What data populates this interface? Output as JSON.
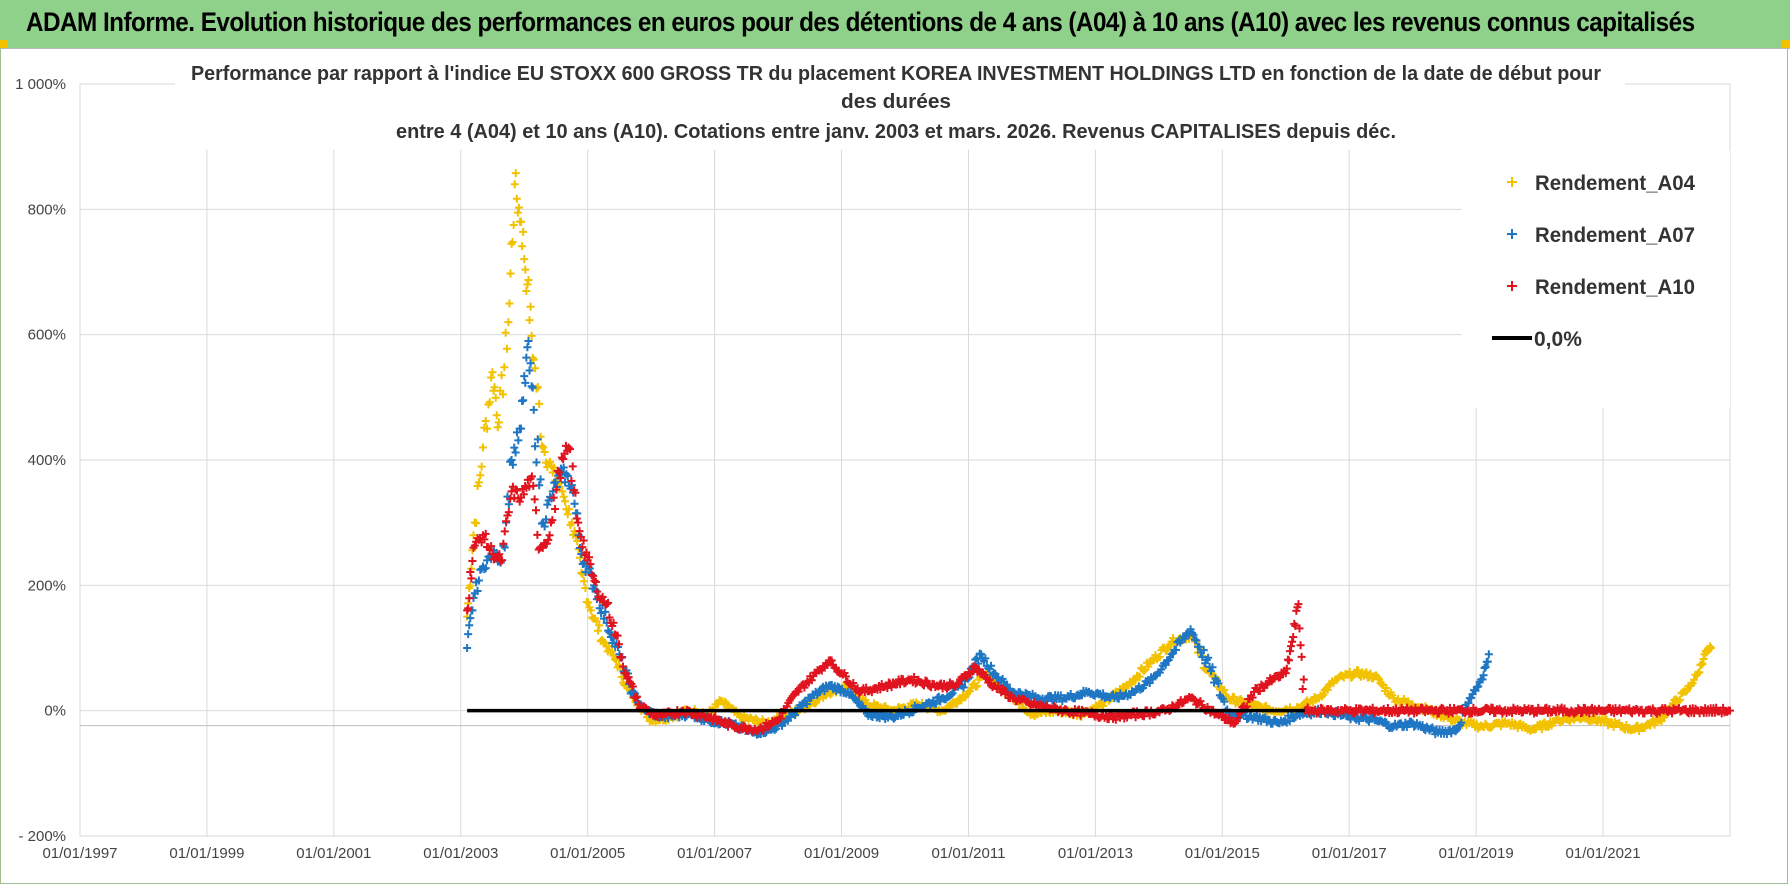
{
  "header": {
    "banner_title": "ADAM Informe. Evolution historique des performances en euros pour des détentions de 4 ans (A04) à 10 ans (A10) avec les revenus connus capitalisés"
  },
  "chart_data": {
    "type": "scatter",
    "title_lines": [
      "Performance par rapport à l'indice EU STOXX 600 GROSS TR  du placement KOREA INVESTMENT HOLDINGS LTD en fonction de la date de début pour",
      "des durées",
      "entre 4 (A04) et 10 ans (A10). Cotations entre janv. 2003 et mars. 2026. Revenus CAPITALISES depuis déc."
    ],
    "x_axis": {
      "range_years": [
        1997.0,
        2023.0
      ],
      "tick_labels": [
        "01/01/1997",
        "01/01/1999",
        "01/01/2001",
        "01/01/2003",
        "01/01/2005",
        "01/01/2007",
        "01/01/2009",
        "01/01/2011",
        "01/01/2013",
        "01/01/2015",
        "01/01/2017",
        "01/01/2019",
        "01/01/2021"
      ],
      "tick_years": [
        1997,
        1999,
        2001,
        2003,
        2005,
        2007,
        2009,
        2011,
        2013,
        2015,
        2017,
        2019,
        2021
      ]
    },
    "y_axis": {
      "range_pct": [
        -200,
        1000
      ],
      "tick_values": [
        -200,
        0,
        200,
        400,
        600,
        800,
        1000
      ],
      "tick_labels": [
        "- 200%",
        "0%",
        "200%",
        "400%",
        "600%",
        "800%",
        "1 000%"
      ]
    },
    "grid": true,
    "legend_position": "top-right",
    "series": [
      {
        "name": "Rendement_A04",
        "color": "#f2c200",
        "marker": "plus",
        "points": [
          [
            2003.1,
            150
          ],
          [
            2003.2,
            280
          ],
          [
            2003.35,
            420
          ],
          [
            2003.5,
            540
          ],
          [
            2003.6,
            460
          ],
          [
            2003.75,
            620
          ],
          [
            2003.85,
            840
          ],
          [
            2003.95,
            780
          ],
          [
            2004.05,
            680
          ],
          [
            2004.15,
            560
          ],
          [
            2004.3,
            420
          ],
          [
            2004.45,
            380
          ],
          [
            2004.6,
            350
          ],
          [
            2004.75,
            300
          ],
          [
            2004.9,
            220
          ],
          [
            2005.05,
            160
          ],
          [
            2005.25,
            110
          ],
          [
            2005.45,
            80
          ],
          [
            2005.6,
            40
          ],
          [
            2005.8,
            10
          ],
          [
            2006.0,
            -15
          ],
          [
            2006.3,
            -10
          ],
          [
            2006.6,
            0
          ],
          [
            2006.9,
            -5
          ],
          [
            2007.1,
            15
          ],
          [
            2007.4,
            -10
          ],
          [
            2007.8,
            -20
          ],
          [
            2008.1,
            -10
          ],
          [
            2008.4,
            5
          ],
          [
            2008.8,
            30
          ],
          [
            2009.1,
            40
          ],
          [
            2009.4,
            10
          ],
          [
            2009.8,
            0
          ],
          [
            2010.2,
            10
          ],
          [
            2010.6,
            0
          ],
          [
            2011.0,
            30
          ],
          [
            2011.3,
            60
          ],
          [
            2011.6,
            30
          ],
          [
            2012.0,
            -5
          ],
          [
            2012.4,
            0
          ],
          [
            2012.8,
            -5
          ],
          [
            2013.1,
            10
          ],
          [
            2013.5,
            40
          ],
          [
            2013.9,
            80
          ],
          [
            2014.2,
            110
          ],
          [
            2014.5,
            120
          ],
          [
            2014.8,
            60
          ],
          [
            2015.1,
            20
          ],
          [
            2015.4,
            10
          ],
          [
            2015.8,
            0
          ],
          [
            2016.2,
            5
          ],
          [
            2016.5,
            20
          ],
          [
            2016.8,
            50
          ],
          [
            2017.1,
            60
          ],
          [
            2017.4,
            55
          ],
          [
            2017.7,
            20
          ],
          [
            2018.0,
            10
          ],
          [
            2018.4,
            -5
          ],
          [
            2018.8,
            -20
          ],
          [
            2019.1,
            -25
          ],
          [
            2019.5,
            -20
          ],
          [
            2019.9,
            -30
          ],
          [
            2020.3,
            -15
          ],
          [
            2020.7,
            -10
          ],
          [
            2021.1,
            -20
          ],
          [
            2021.5,
            -30
          ],
          [
            2021.9,
            -15
          ],
          [
            2022.1,
            10
          ],
          [
            2022.3,
            30
          ],
          [
            2022.5,
            60
          ],
          [
            2022.6,
            90
          ],
          [
            2022.7,
            100
          ]
        ]
      },
      {
        "name": "Rendement_A07",
        "color": "#1f77c4",
        "marker": "plus",
        "points": [
          [
            2003.1,
            100
          ],
          [
            2003.2,
            180
          ],
          [
            2003.35,
            230
          ],
          [
            2003.5,
            250
          ],
          [
            2003.65,
            240
          ],
          [
            2003.8,
            400
          ],
          [
            2003.95,
            450
          ],
          [
            2004.05,
            580
          ],
          [
            2004.15,
            480
          ],
          [
            2004.3,
            300
          ],
          [
            2004.45,
            350
          ],
          [
            2004.6,
            380
          ],
          [
            2004.75,
            360
          ],
          [
            2004.9,
            250
          ],
          [
            2005.1,
            200
          ],
          [
            2005.3,
            140
          ],
          [
            2005.5,
            90
          ],
          [
            2005.7,
            30
          ],
          [
            2005.9,
            0
          ],
          [
            2006.2,
            -10
          ],
          [
            2006.6,
            -5
          ],
          [
            2006.9,
            -15
          ],
          [
            2007.2,
            -20
          ],
          [
            2007.6,
            -35
          ],
          [
            2007.9,
            -30
          ],
          [
            2008.2,
            -10
          ],
          [
            2008.5,
            20
          ],
          [
            2008.8,
            40
          ],
          [
            2009.1,
            30
          ],
          [
            2009.4,
            -5
          ],
          [
            2009.8,
            -10
          ],
          [
            2010.2,
            5
          ],
          [
            2010.6,
            20
          ],
          [
            2010.9,
            40
          ],
          [
            2011.2,
            90
          ],
          [
            2011.4,
            60
          ],
          [
            2011.7,
            30
          ],
          [
            2012.1,
            20
          ],
          [
            2012.5,
            20
          ],
          [
            2012.9,
            30
          ],
          [
            2013.3,
            20
          ],
          [
            2013.6,
            30
          ],
          [
            2013.9,
            50
          ],
          [
            2014.2,
            90
          ],
          [
            2014.5,
            130
          ],
          [
            2014.8,
            70
          ],
          [
            2015.1,
            -5
          ],
          [
            2015.5,
            -10
          ],
          [
            2015.9,
            -20
          ],
          [
            2016.2,
            -5
          ],
          [
            2016.6,
            0
          ],
          [
            2017.0,
            -10
          ],
          [
            2017.4,
            -15
          ],
          [
            2017.7,
            -25
          ],
          [
            2018.0,
            -20
          ],
          [
            2018.4,
            -35
          ],
          [
            2018.7,
            -30
          ],
          [
            2018.9,
            20
          ],
          [
            2019.1,
            50
          ],
          [
            2019.2,
            90
          ]
        ]
      },
      {
        "name": "Rendement_A10",
        "color": "#e0141e",
        "marker": "plus",
        "points": [
          [
            2003.1,
            160
          ],
          [
            2003.2,
            260
          ],
          [
            2003.35,
            280
          ],
          [
            2003.5,
            250
          ],
          [
            2003.65,
            240
          ],
          [
            2003.8,
            350
          ],
          [
            2003.95,
            340
          ],
          [
            2004.1,
            370
          ],
          [
            2004.25,
            260
          ],
          [
            2004.4,
            280
          ],
          [
            2004.55,
            380
          ],
          [
            2004.7,
            420
          ],
          [
            2004.85,
            300
          ],
          [
            2005.0,
            240
          ],
          [
            2005.15,
            190
          ],
          [
            2005.3,
            170
          ],
          [
            2005.45,
            120
          ],
          [
            2005.6,
            60
          ],
          [
            2005.8,
            10
          ],
          [
            2006.1,
            -10
          ],
          [
            2006.5,
            0
          ],
          [
            2006.9,
            -10
          ],
          [
            2007.3,
            -25
          ],
          [
            2007.7,
            -30
          ],
          [
            2008.0,
            -15
          ],
          [
            2008.3,
            30
          ],
          [
            2008.6,
            60
          ],
          [
            2008.8,
            80
          ],
          [
            2009.0,
            60
          ],
          [
            2009.3,
            30
          ],
          [
            2009.7,
            40
          ],
          [
            2010.1,
            50
          ],
          [
            2010.5,
            40
          ],
          [
            2010.8,
            40
          ],
          [
            2011.1,
            70
          ],
          [
            2011.4,
            40
          ],
          [
            2011.7,
            20
          ],
          [
            2012.0,
            10
          ],
          [
            2012.5,
            0
          ],
          [
            2012.9,
            -5
          ],
          [
            2013.3,
            -10
          ],
          [
            2013.7,
            -5
          ],
          [
            2014.1,
            0
          ],
          [
            2014.5,
            20
          ],
          [
            2014.9,
            -5
          ],
          [
            2015.2,
            -20
          ],
          [
            2015.5,
            30
          ],
          [
            2015.8,
            50
          ],
          [
            2016.0,
            60
          ],
          [
            2016.1,
            110
          ],
          [
            2016.2,
            170
          ],
          [
            2016.3,
            0
          ],
          [
            2016.6,
            0
          ],
          [
            2017.0,
            0
          ],
          [
            2017.5,
            0
          ],
          [
            2018.0,
            0
          ],
          [
            2018.5,
            0
          ],
          [
            2019.0,
            0
          ],
          [
            2019.5,
            0
          ],
          [
            2020.0,
            0
          ],
          [
            2020.5,
            0
          ],
          [
            2021.0,
            0
          ],
          [
            2021.5,
            0
          ],
          [
            2022.0,
            0
          ],
          [
            2022.5,
            0
          ],
          [
            2023.0,
            0
          ]
        ]
      }
    ],
    "reference_line": {
      "name": "0,0%",
      "color": "#000000",
      "value_pct": 0,
      "x_start_year": 2003.1,
      "x_end_year": 2016.3
    },
    "legend": [
      "Rendement_A04",
      "Rendement_A07",
      "Rendement_A10",
      "0,0%"
    ]
  }
}
